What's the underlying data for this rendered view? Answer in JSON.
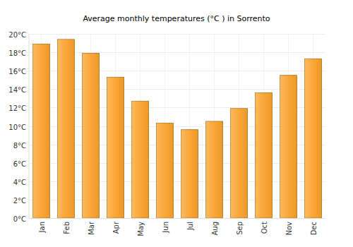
{
  "chart_data": {
    "type": "bar",
    "title": "Average monthly temperatures (°C ) in Sorrento",
    "categories": [
      "Jan",
      "Feb",
      "Mar",
      "Apr",
      "May",
      "Jun",
      "Jul",
      "Aug",
      "Sep",
      "Oct",
      "Nov",
      "Dec"
    ],
    "values": [
      18.9,
      19.4,
      17.9,
      15.3,
      12.7,
      10.3,
      9.6,
      10.5,
      11.9,
      13.6,
      15.5,
      17.3
    ],
    "color": "#fba22c",
    "ylim": [
      0,
      20
    ],
    "yticks": [
      {
        "value": 0,
        "label": "0°C"
      },
      {
        "value": 2,
        "label": "2°C"
      },
      {
        "value": 4,
        "label": "4°C"
      },
      {
        "value": 6,
        "label": "6°C"
      },
      {
        "value": 8,
        "label": "8°C"
      },
      {
        "value": 10,
        "label": "10°C"
      },
      {
        "value": 12,
        "label": "12°C"
      },
      {
        "value": 14,
        "label": "14°C"
      },
      {
        "value": 16,
        "label": "16°C"
      },
      {
        "value": 18,
        "label": "18°C"
      },
      {
        "value": 20,
        "label": "20°C"
      }
    ],
    "grid": true
  }
}
